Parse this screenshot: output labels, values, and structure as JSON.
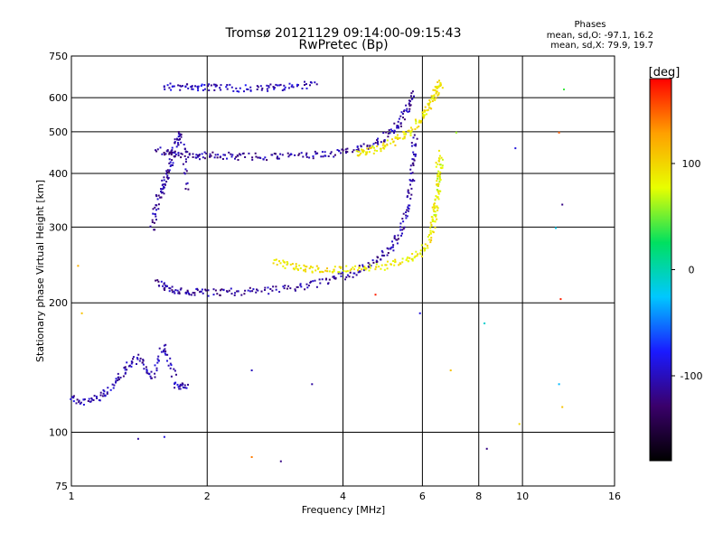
{
  "chart_data": {
    "type": "scatter",
    "title": "Tromsø 20121129 09:14:00-09:15:43",
    "subtitle": "RwPretec (Bp)",
    "xlabel": "Frequency [MHz]",
    "ylabel": "Stationary phase Virtual Height [km]",
    "x_scale": "log",
    "y_scale": "log",
    "xlim": [
      1,
      16
    ],
    "ylim": [
      75,
      750
    ],
    "grid": true,
    "x_ticks": [
      1,
      2,
      4,
      6,
      8,
      10,
      16
    ],
    "x_tick_labels": [
      "1",
      "2",
      "4",
      "6",
      "8",
      "10",
      "16"
    ],
    "x_gridlines": [
      2,
      4,
      6,
      8,
      10
    ],
    "y_ticks": [
      75,
      100,
      200,
      300,
      400,
      500,
      600,
      750
    ],
    "y_tick_labels": [
      "75",
      "100",
      "200",
      "300",
      "400",
      "500",
      "600",
      "750"
    ],
    "y_gridlines": [
      100,
      200,
      300,
      400,
      500,
      600
    ],
    "phase_stats": {
      "header": "Phases",
      "line_o": "mean, sd,O: -97.1, 16.2",
      "line_x": "mean, sd,X:  79.9, 19.7"
    },
    "colorbar": {
      "label": "[deg]",
      "range": [
        -180,
        180
      ],
      "ticks": [
        100,
        0,
        -100
      ],
      "tick_labels": [
        "100",
        "0",
        "-100"
      ],
      "colors": [
        "#000000",
        "#3a006b",
        "#1a1aff",
        "#00c8ff",
        "#00e060",
        "#e8ff00",
        "#ffa000",
        "#ff0000"
      ]
    },
    "series": [
      {
        "segments": [
          {
            "x": [
              1.6,
              1.8,
              2.0,
              2.3,
              2.7,
              3.0,
              3.5
            ],
            "y": [
              640,
              638,
              636,
              634,
              634,
              640,
              648
            ],
            "phase": -100
          },
          {
            "x": [
              1.55,
              1.7,
              1.9,
              2.1,
              2.4,
              2.8,
              3.3,
              3.8,
              4.3,
              4.8,
              5.2,
              5.5,
              5.7
            ],
            "y": [
              455,
              445,
              442,
              441,
              440,
              440,
              442,
              447,
              457,
              478,
              510,
              560,
              620
            ],
            "phase": -110
          },
          {
            "x": [
              1.55,
              1.65,
              1.8,
              2.0,
              2.3,
              2.7,
              3.2,
              3.7,
              4.2,
              4.7,
              5.1,
              5.4,
              5.6,
              5.7,
              5.75
            ],
            "y": [
              225,
              216,
              213,
              212,
              213,
              215,
              219,
              226,
              236,
              250,
              270,
              300,
              350,
              420,
              490
            ],
            "phase": -110
          },
          {
            "x": [
              1.0,
              1.1,
              1.2,
              1.3,
              1.4,
              1.5,
              1.6,
              1.7,
              1.8
            ],
            "y": [
              120,
              118,
              125,
              140,
              150,
              135,
              160,
              130,
              128
            ],
            "phase": -105
          },
          {
            "x": [
              1.5,
              1.55,
              1.6,
              1.65,
              1.7,
              1.75,
              1.8
            ],
            "y": [
              300,
              350,
              380,
              420,
              470,
              500,
              360
            ],
            "phase": -110
          }
        ]
      },
      {
        "segments": [
          {
            "x": [
              2.8,
              3.1,
              3.4,
              3.8,
              4.3,
              4.9,
              5.5,
              6.0,
              6.3,
              6.45,
              6.5
            ],
            "y": [
              250,
              244,
              241,
              240,
              241,
              244,
              252,
              265,
              300,
              360,
              440
            ],
            "phase": 90
          },
          {
            "x": [
              4.3,
              4.6,
              5.0,
              5.4,
              5.8,
              6.1,
              6.3,
              6.45,
              6.55
            ],
            "y": [
              448,
              455,
              468,
              490,
              520,
              560,
              600,
              630,
              650
            ],
            "phase": 90
          },
          {
            "x": [
              6.3,
              6.4,
              6.5,
              6.6
            ],
            "y": [
              300,
              340,
              390,
              450
            ],
            "phase": 80
          }
        ]
      }
    ],
    "scattered": [
      {
        "x": 8.2,
        "y": 180,
        "phase": -10
      },
      {
        "x": 8.3,
        "y": 92,
        "phase": -120
      },
      {
        "x": 9.8,
        "y": 105,
        "phase": 100
      },
      {
        "x": 9.6,
        "y": 460,
        "phase": -90
      },
      {
        "x": 12.2,
        "y": 340,
        "phase": -120
      },
      {
        "x": 12.0,
        "y": 500,
        "phase": 150
      },
      {
        "x": 12.1,
        "y": 205,
        "phase": 170
      },
      {
        "x": 12.3,
        "y": 630,
        "phase": 40
      },
      {
        "x": 11.8,
        "y": 300,
        "phase": -20
      },
      {
        "x": 12.2,
        "y": 115,
        "phase": 110
      },
      {
        "x": 12.0,
        "y": 130,
        "phase": -30
      },
      {
        "x": 2.5,
        "y": 140,
        "phase": -100
      },
      {
        "x": 3.4,
        "y": 130,
        "phase": -110
      },
      {
        "x": 2.9,
        "y": 86,
        "phase": -120
      },
      {
        "x": 2.5,
        "y": 88,
        "phase": 140
      },
      {
        "x": 4.7,
        "y": 210,
        "phase": 170
      },
      {
        "x": 5.9,
        "y": 190,
        "phase": -90
      },
      {
        "x": 6.9,
        "y": 140,
        "phase": 110
      },
      {
        "x": 7.1,
        "y": 500,
        "phase": 60
      },
      {
        "x": 1.05,
        "y": 190,
        "phase": 110
      },
      {
        "x": 1.03,
        "y": 245,
        "phase": 120
      },
      {
        "x": 1.4,
        "y": 97,
        "phase": -110
      },
      {
        "x": 1.6,
        "y": 98,
        "phase": -90
      }
    ]
  }
}
